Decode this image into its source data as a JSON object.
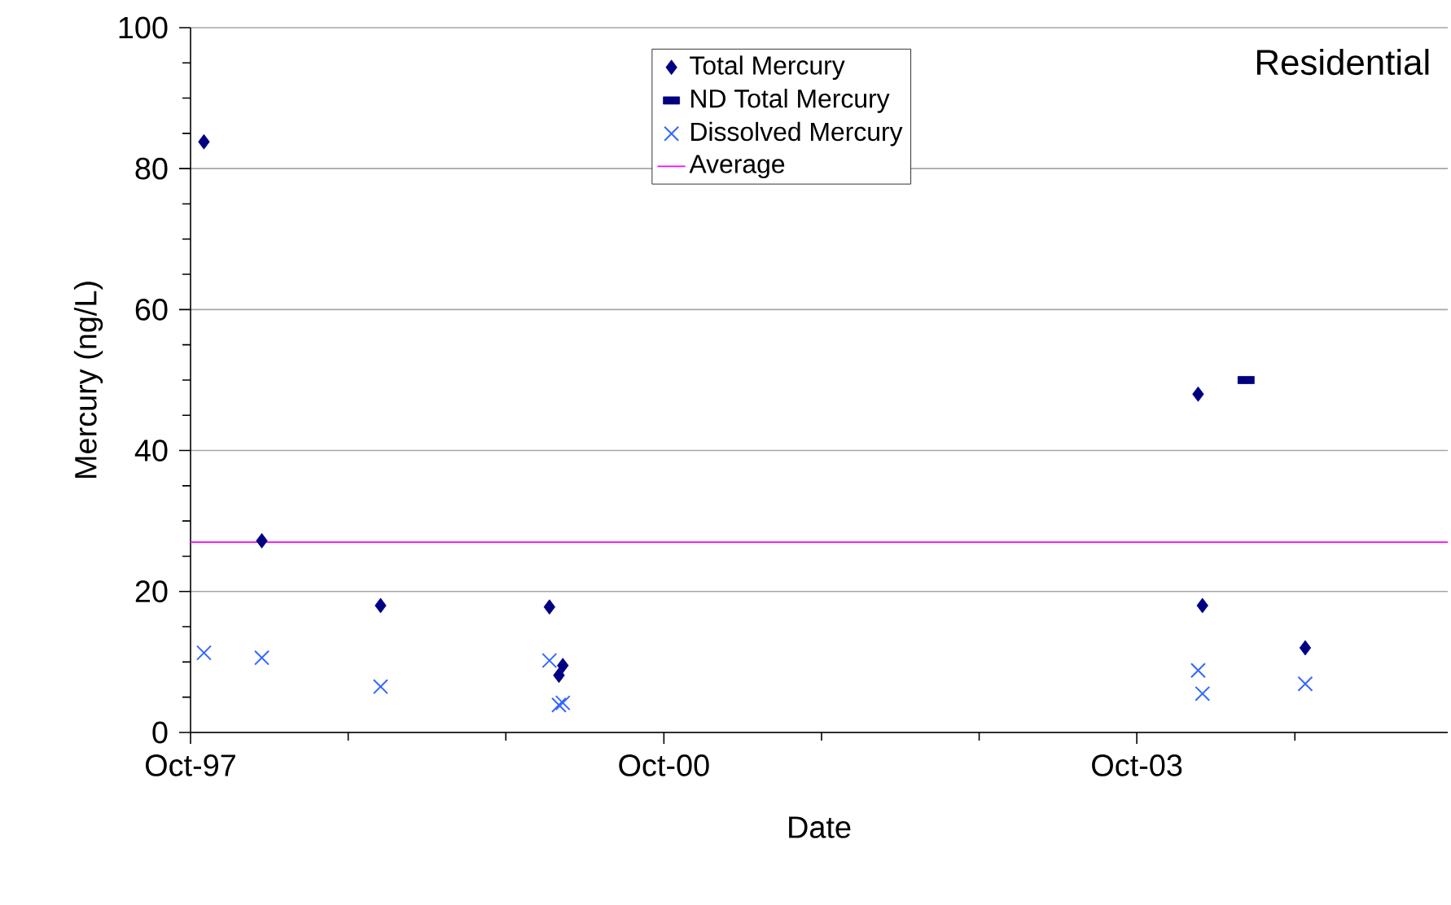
{
  "chart_data": {
    "type": "scatter",
    "xlabel": "Date",
    "ylabel": "Mercury (ng/L)",
    "annotations": [
      "Residential"
    ],
    "series": [
      {
        "name": "Total Mercury",
        "color": "#000080",
        "marker": "diamond",
        "x": [
          "1997-11-01",
          "1998-03-15",
          "1998-12-15",
          "2000-01-10",
          "2000-02-01",
          "2000-02-10",
          "2004-02-20",
          "2004-03-01",
          "2004-10-25"
        ],
        "values": [
          83.8,
          27.2,
          18,
          17.8,
          8.1,
          9.5,
          48,
          18,
          12
        ]
      },
      {
        "name": "ND Total Mercury",
        "color": "#000080",
        "marker": "square",
        "x": [
          "2004-06-10"
        ],
        "values": [
          50
        ]
      },
      {
        "name": "Dissolved Mercury",
        "color": "#3366ff",
        "marker": "cross",
        "x": [
          "1997-11-01",
          "1998-03-15",
          "1998-12-15",
          "2000-01-10",
          "2000-02-01",
          "2000-02-10",
          "2004-02-20",
          "2004-03-01",
          "2004-10-25"
        ],
        "values": [
          11.3,
          10.6,
          6.5,
          10.2,
          3.9,
          4.2,
          8.8,
          5.5,
          6.9
        ]
      }
    ],
    "ref_lines": [
      {
        "axis": "y",
        "value": 27,
        "label": "Average",
        "color": "#ff00ff"
      }
    ],
    "xlim": [
      "1997-10-01",
      "2005-09-20"
    ],
    "xticks": [
      {
        "value": "1997-10-01",
        "label": "Oct-97"
      },
      {
        "value": "1998-10-01",
        "label": null
      },
      {
        "value": "1999-10-01",
        "label": null
      },
      {
        "value": "2000-10-01",
        "label": "Oct-00"
      },
      {
        "value": "2001-10-01",
        "label": null
      },
      {
        "value": "2002-10-01",
        "label": null
      },
      {
        "value": "2003-10-01",
        "label": "Oct-03"
      },
      {
        "value": "2004-10-01",
        "label": null
      }
    ],
    "ylim": [
      0,
      100
    ],
    "yticks": [
      0,
      {
        "value": 5,
        "label": null
      },
      {
        "value": 10,
        "label": null
      },
      {
        "value": 15,
        "label": null
      },
      20,
      {
        "value": 25,
        "label": null
      },
      {
        "value": 30,
        "label": null
      },
      {
        "value": 35,
        "label": null
      },
      40,
      {
        "value": 45,
        "label": null
      },
      {
        "value": 50,
        "label": null
      },
      {
        "value": 55,
        "label": null
      },
      60,
      {
        "value": 65,
        "label": null
      },
      {
        "value": 70,
        "label": null
      },
      {
        "value": 75,
        "label": null
      },
      80,
      {
        "value": 85,
        "label": null
      },
      {
        "value": 90,
        "label": null
      },
      {
        "value": 95,
        "label": null
      },
      100
    ],
    "grid": "y",
    "legend": "top"
  }
}
